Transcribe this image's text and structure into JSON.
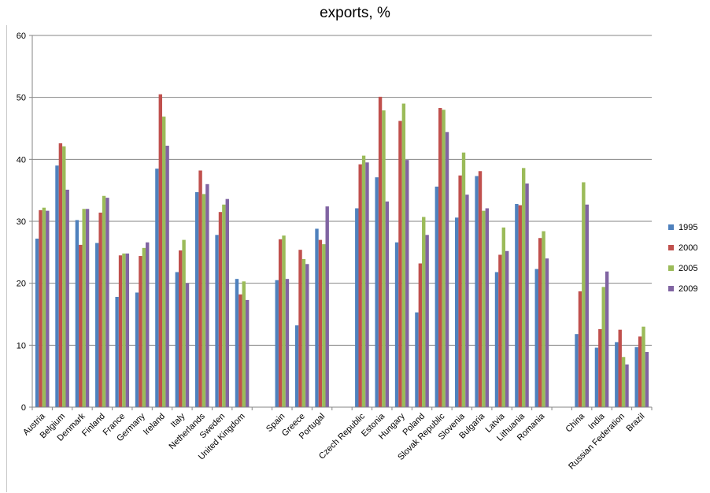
{
  "chart_data": {
    "type": "bar",
    "title": "exports, %",
    "xlabel": "",
    "ylabel": "",
    "ylim": [
      0,
      60
    ],
    "yticks": [
      0,
      10,
      20,
      30,
      40,
      50,
      60
    ],
    "grid": true,
    "legend_position": "right",
    "colors": [
      "#4f81bd",
      "#c0504d",
      "#9bbb59",
      "#8064a2"
    ],
    "categories": [
      "Austria",
      "Belgium",
      "Denmark",
      "Finland",
      "France",
      "Germany",
      "Ireland",
      "Italy",
      "Netherlands",
      "Sweden",
      "United Kingdom",
      "",
      "Spain",
      "Greece",
      "Portugal",
      "",
      "Czech Republic",
      "Estonia",
      "Hungary",
      "Poland",
      "Slovak Republic",
      "Slovenia",
      "Bulgaria",
      "Latvia",
      "Lithuania",
      "Romania",
      "",
      "China",
      "India",
      "Russian Federation",
      "Brazil"
    ],
    "series": [
      {
        "name": "1995",
        "values": [
          27.2,
          39.0,
          30.2,
          26.5,
          17.8,
          18.5,
          38.5,
          21.8,
          34.7,
          27.8,
          20.7,
          null,
          20.5,
          13.2,
          28.8,
          null,
          32.1,
          37.1,
          26.6,
          15.3,
          35.6,
          30.6,
          37.3,
          21.8,
          32.8,
          22.3,
          null,
          11.8,
          9.6,
          10.5,
          9.7
        ]
      },
      {
        "name": "2000",
        "values": [
          31.8,
          42.6,
          26.2,
          31.4,
          24.5,
          24.4,
          50.5,
          25.3,
          38.2,
          31.5,
          18.2,
          null,
          27.1,
          25.4,
          27.0,
          null,
          39.2,
          50.1,
          46.2,
          23.2,
          48.3,
          37.4,
          38.1,
          24.6,
          32.6,
          27.3,
          null,
          18.7,
          12.6,
          12.5,
          11.4
        ]
      },
      {
        "name": "2005",
        "values": [
          32.2,
          42.1,
          32.0,
          34.1,
          24.8,
          25.7,
          46.9,
          27.0,
          34.4,
          32.7,
          20.3,
          null,
          27.7,
          23.9,
          26.3,
          null,
          40.6,
          47.9,
          49.0,
          30.7,
          48.0,
          41.1,
          31.7,
          29.0,
          38.6,
          28.4,
          null,
          36.3,
          19.4,
          8.1,
          13.0
        ]
      },
      {
        "name": "2009",
        "values": [
          31.7,
          35.1,
          32.0,
          33.8,
          24.8,
          26.6,
          42.2,
          20.0,
          36.0,
          33.6,
          17.3,
          null,
          20.7,
          23.1,
          32.4,
          null,
          39.5,
          33.2,
          39.9,
          27.8,
          44.4,
          34.3,
          32.1,
          25.2,
          36.1,
          24.0,
          null,
          32.7,
          21.9,
          6.9,
          8.9
        ]
      }
    ]
  }
}
